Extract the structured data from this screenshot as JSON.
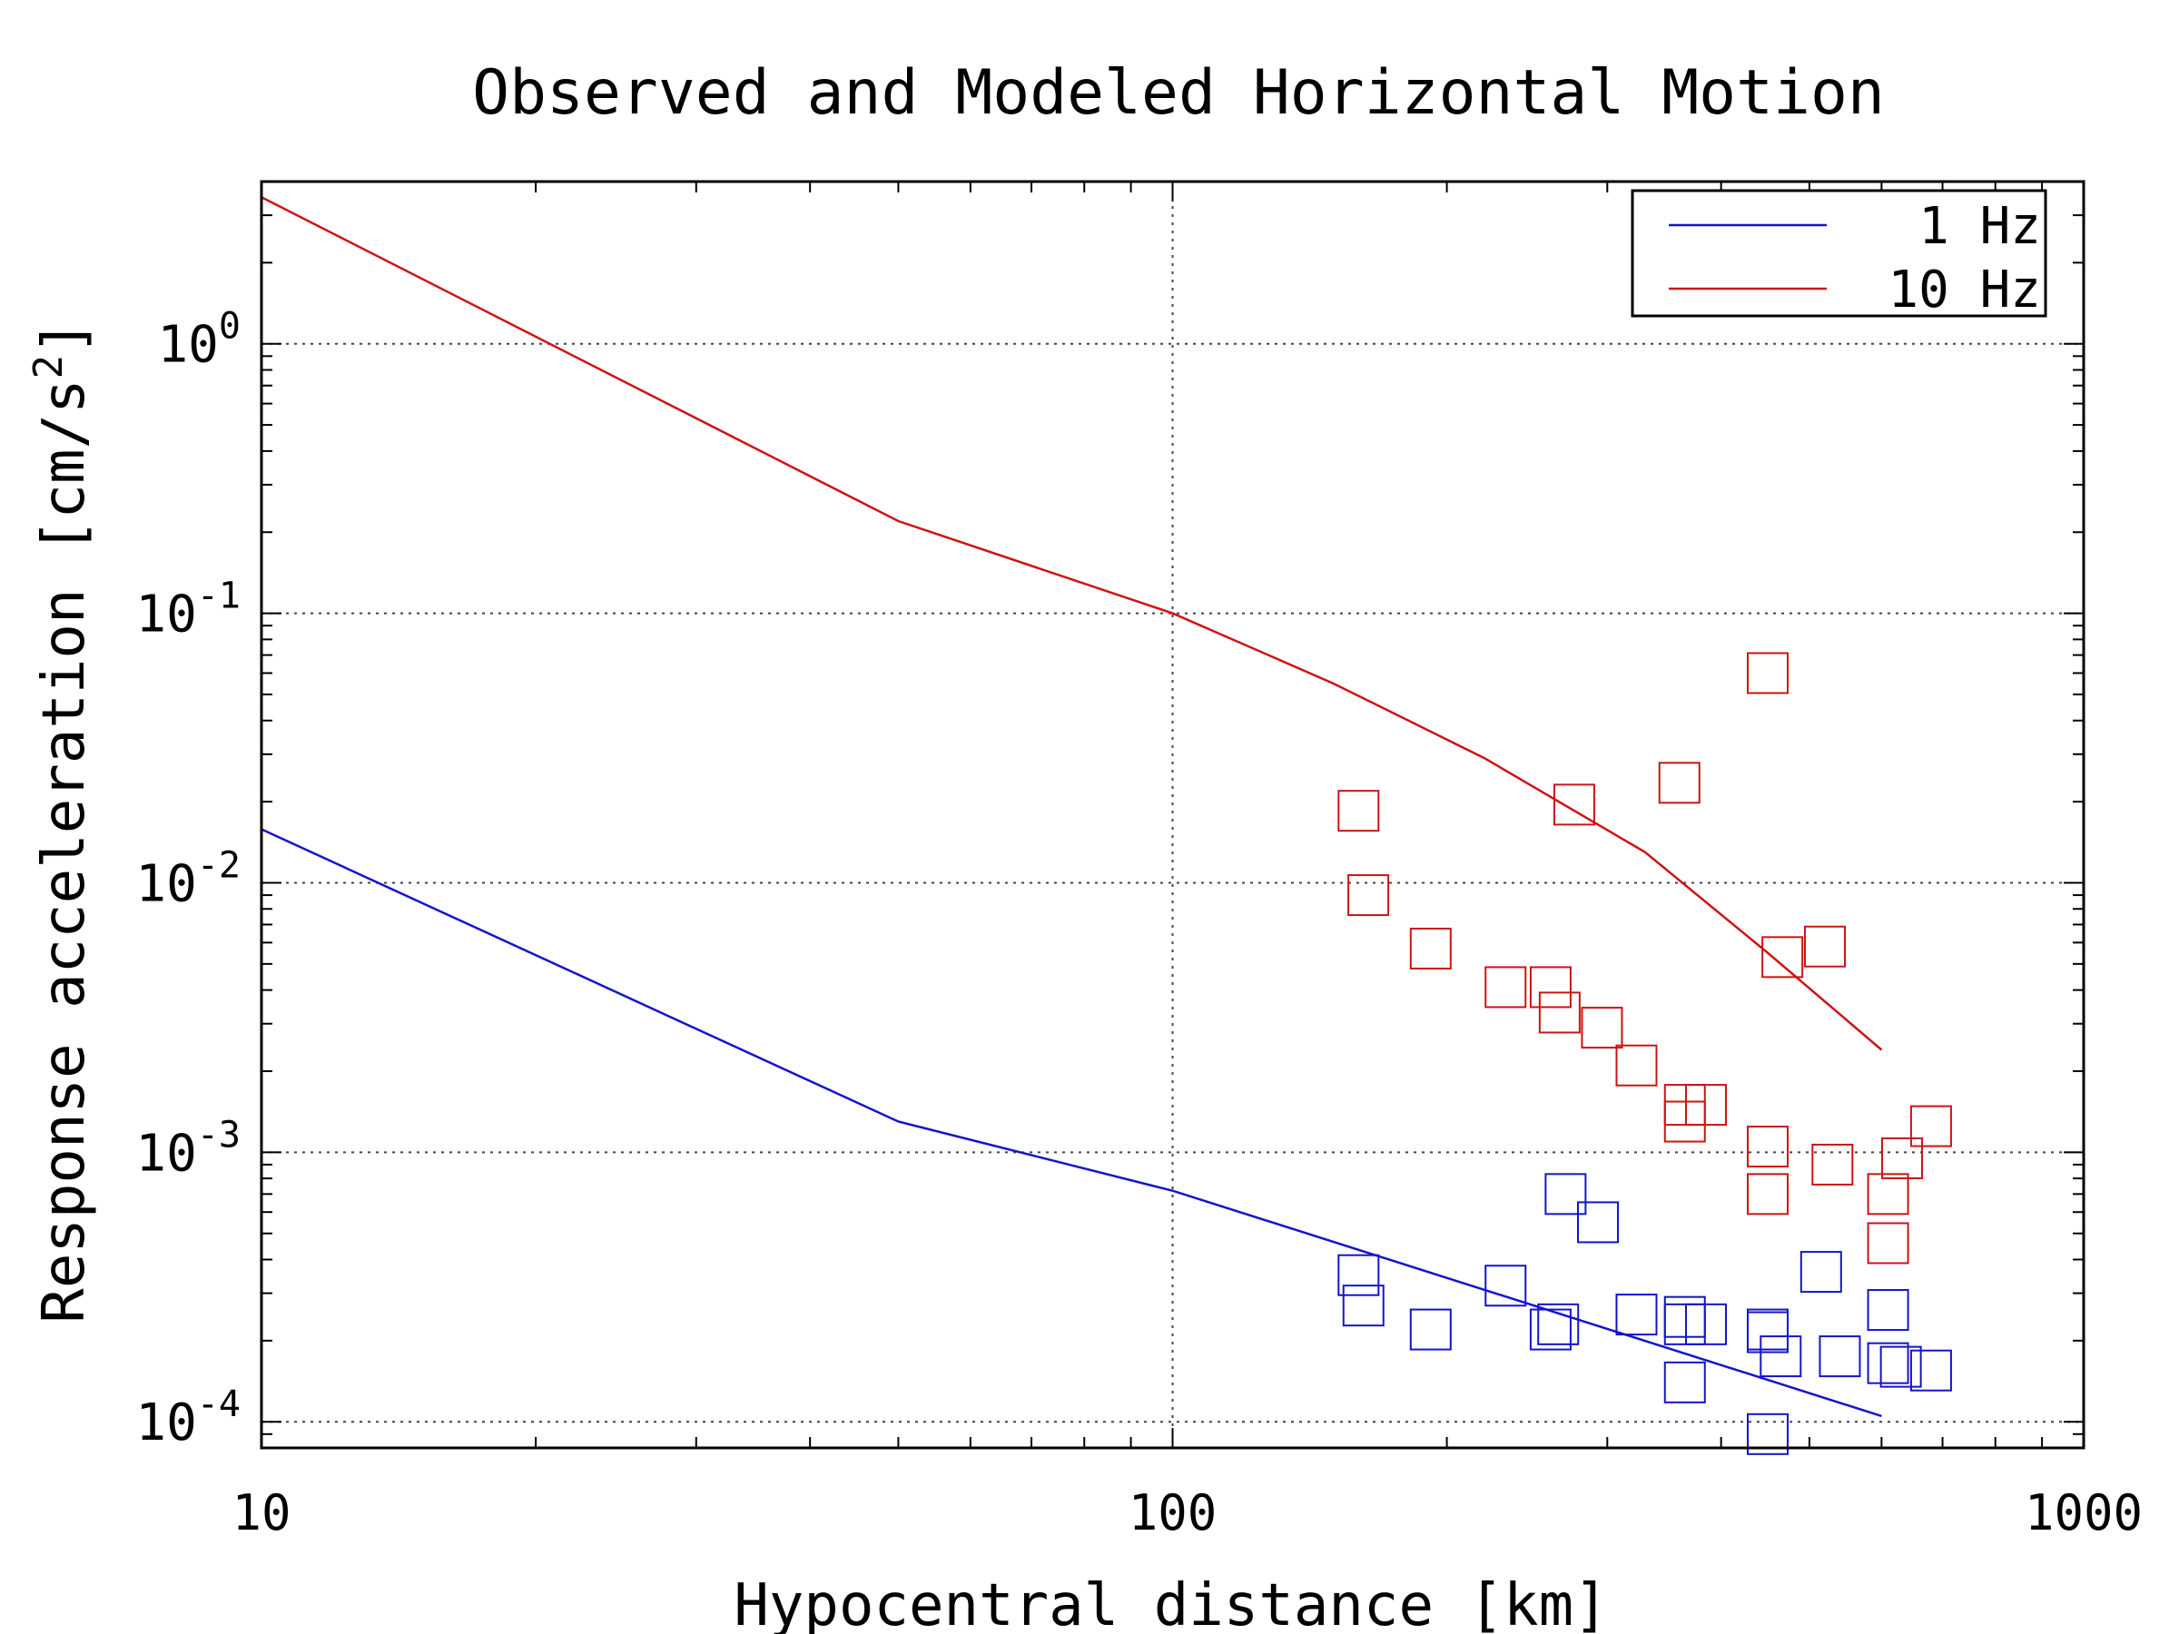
{
  "chart_data": {
    "type": "scatter",
    "title": "Observed and Modeled Horizontal Motion",
    "xlabel": "Hypocentral distance [km]",
    "ylabel": "Response acceleration [cm/s",
    "ylabel_sup": "2",
    "ylabel_close": "]",
    "x_scale": "log",
    "y_scale": "log",
    "xlim": [
      10,
      1000
    ],
    "ylim": [
      8e-05,
      4
    ],
    "x_ticks": [
      {
        "value": 10,
        "label": "10"
      },
      {
        "value": 100,
        "label": "100"
      },
      {
        "value": 1000,
        "label": "1000"
      }
    ],
    "y_ticks": [
      {
        "value": 1,
        "base": "10",
        "exp": "0"
      },
      {
        "value": 0.1,
        "base": "10",
        "exp": "-1"
      },
      {
        "value": 0.01,
        "base": "10",
        "exp": "-2"
      },
      {
        "value": 0.001,
        "base": "10",
        "exp": "-3"
      },
      {
        "value": 0.0001,
        "base": "10",
        "exp": "-4"
      }
    ],
    "grid": true,
    "legend_position": "top-right",
    "series": [
      {
        "name": "1 Hz",
        "color": "#1414cc",
        "model": [
          [
            10,
            0.0158
          ],
          [
            50,
            0.0013
          ],
          [
            100,
            0.00072
          ],
          [
            600,
            0.000105
          ]
        ],
        "observed": [
          [
            160,
            0.00035
          ],
          [
            162,
            0.00027
          ],
          [
            192,
            0.00022
          ],
          [
            232,
            0.00032
          ],
          [
            260,
            0.00022
          ],
          [
            265,
            0.00023
          ],
          [
            270,
            0.0007
          ],
          [
            293,
            0.00055
          ],
          [
            323,
            0.00025
          ],
          [
            365,
            0.00014
          ],
          [
            365,
            0.000245
          ],
          [
            365,
            0.00023
          ],
          [
            385,
            0.00023
          ],
          [
            450,
            0.000215
          ],
          [
            450,
            0.00022
          ],
          [
            450,
            9e-05
          ],
          [
            465,
            0.000175
          ],
          [
            515,
            0.00036
          ],
          [
            540,
            0.000175
          ],
          [
            610,
            0.00026
          ],
          [
            610,
            0.000165
          ],
          [
            630,
            0.00016
          ],
          [
            680,
            0.000155
          ]
        ]
      },
      {
        "name": "10 Hz",
        "color": "#cc1414",
        "model": [
          [
            10,
            3.5
          ],
          [
            50,
            0.22
          ],
          [
            100,
            0.1
          ],
          [
            150,
            0.055
          ],
          [
            220,
            0.029
          ],
          [
            330,
            0.013
          ],
          [
            450,
            0.0055
          ],
          [
            600,
            0.0024
          ]
        ],
        "observed": [
          [
            160,
            0.0185
          ],
          [
            164,
            0.009
          ],
          [
            192,
            0.0057
          ],
          [
            232,
            0.0041
          ],
          [
            260,
            0.0041
          ],
          [
            266,
            0.0033
          ],
          [
            276,
            0.0195
          ],
          [
            296,
            0.0029
          ],
          [
            323,
            0.0021
          ],
          [
            360,
            0.0235
          ],
          [
            365,
            0.0013
          ],
          [
            365,
            0.0015
          ],
          [
            385,
            0.0015
          ],
          [
            450,
            0.06
          ],
          [
            450,
            0.00105
          ],
          [
            450,
            0.0007
          ],
          [
            467,
            0.0053
          ],
          [
            520,
            0.0058
          ],
          [
            530,
            0.0009
          ],
          [
            610,
            0.0007
          ],
          [
            610,
            0.00046
          ],
          [
            632,
            0.00095
          ],
          [
            680,
            0.00125
          ]
        ]
      }
    ]
  }
}
